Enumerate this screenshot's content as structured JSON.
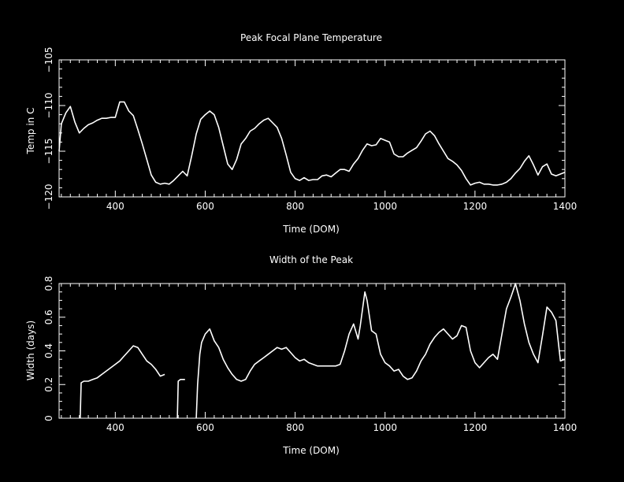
{
  "chart_data": [
    {
      "type": "line",
      "title": "Peak Focal Plane Temperature",
      "xlabel": "Time (DOM)",
      "ylabel": "Temp in C",
      "xlim": [
        275,
        1400
      ],
      "ylim": [
        -120,
        -105
      ],
      "y_reversed": true,
      "xticks": [
        400,
        600,
        800,
        1000,
        1200,
        1400
      ],
      "xtick_labels": [
        "400",
        "600",
        "800",
        "1000",
        "1200",
        "1400"
      ],
      "yticks": [
        -105,
        -110,
        -115,
        -120
      ],
      "ytick_labels": [
        "−105",
        "−110",
        "−115",
        "−120"
      ],
      "grid": false,
      "series": [
        {
          "color": "#ffffff",
          "x": [
            275,
            280,
            290,
            300,
            310,
            320,
            330,
            340,
            350,
            360,
            370,
            380,
            390,
            400,
            410,
            420,
            430,
            440,
            450,
            460,
            470,
            480,
            490,
            500,
            510,
            520,
            530,
            540,
            550,
            560,
            570,
            580,
            590,
            600,
            610,
            620,
            630,
            640,
            650,
            660,
            670,
            680,
            690,
            700,
            710,
            720,
            730,
            740,
            750,
            760,
            770,
            780,
            790,
            800,
            810,
            820,
            830,
            840,
            850,
            860,
            870,
            880,
            890,
            900,
            910,
            920,
            930,
            940,
            950,
            960,
            970,
            980,
            990,
            1000,
            1010,
            1020,
            1030,
            1040,
            1050,
            1060,
            1070,
            1080,
            1090,
            1100,
            1110,
            1120,
            1130,
            1140,
            1150,
            1160,
            1170,
            1180,
            1190,
            1200,
            1210,
            1220,
            1230,
            1240,
            1250,
            1260,
            1270,
            1280,
            1290,
            1300,
            1310,
            1320,
            1330,
            1340,
            1350,
            1360,
            1370,
            1380,
            1390,
            1400
          ],
          "y": [
            -115.0,
            -112.0,
            -110.8,
            -110.1,
            -111.8,
            -113.0,
            -112.5,
            -112.1,
            -111.9,
            -111.6,
            -111.4,
            -111.4,
            -111.3,
            -111.3,
            -109.6,
            -109.6,
            -110.6,
            -111.1,
            -112.6,
            -114.2,
            -115.9,
            -117.6,
            -118.4,
            -118.6,
            -118.5,
            -118.6,
            -118.2,
            -117.7,
            -117.2,
            -117.7,
            -115.5,
            -113.1,
            -111.5,
            -111.0,
            -110.6,
            -111.0,
            -112.4,
            -114.4,
            -116.4,
            -117.0,
            -115.9,
            -114.2,
            -113.6,
            -112.8,
            -112.5,
            -112.0,
            -111.6,
            -111.4,
            -111.9,
            -112.4,
            -113.6,
            -115.4,
            -117.3,
            -118.0,
            -118.2,
            -117.9,
            -118.2,
            -118.1,
            -118.1,
            -117.7,
            -117.6,
            -117.8,
            -117.4,
            -117.0,
            -117.0,
            -117.2,
            -116.4,
            -115.8,
            -114.9,
            -114.2,
            -114.4,
            -114.3,
            -113.6,
            -113.8,
            -114.0,
            -115.3,
            -115.6,
            -115.6,
            -115.2,
            -114.9,
            -114.6,
            -113.9,
            -113.1,
            -112.8,
            -113.3,
            -114.2,
            -115.0,
            -115.8,
            -116.1,
            -116.5,
            -117.1,
            -118.0,
            -118.7,
            -118.5,
            -118.4,
            -118.6,
            -118.6,
            -118.7,
            -118.7,
            -118.6,
            -118.4,
            -118.0,
            -117.4,
            -116.9,
            -116.1,
            -115.5,
            -116.5,
            -117.6,
            -116.7,
            -116.4,
            -117.5,
            -117.7,
            -117.5,
            -117.3
          ]
        }
      ]
    },
    {
      "type": "line",
      "title": "Width of the Peak",
      "xlabel": "Time (DOM)",
      "ylabel": "Width (days)",
      "xlim": [
        275,
        1400
      ],
      "ylim": [
        0,
        0.8
      ],
      "xticks": [
        400,
        600,
        800,
        1000,
        1200,
        1400
      ],
      "xtick_labels": [
        "400",
        "600",
        "800",
        "1000",
        "1200",
        "1400"
      ],
      "yticks": [
        0,
        0.2,
        0.4,
        0.6,
        0.8
      ],
      "ytick_labels": [
        "0",
        "0.2",
        "0.4",
        "0.6",
        "0.8"
      ],
      "grid": false,
      "series": [
        {
          "color": "#ffffff",
          "segments": [
            {
              "x": [
                322,
                324,
                330,
                340,
                350,
                360,
                370,
                380,
                390,
                400,
                410,
                420,
                430,
                440,
                450,
                460,
                470,
                480,
                490,
                500,
                510
              ],
              "y": [
                0.0,
                0.21,
                0.22,
                0.22,
                0.23,
                0.24,
                0.26,
                0.28,
                0.3,
                0.32,
                0.34,
                0.37,
                0.4,
                0.43,
                0.42,
                0.38,
                0.34,
                0.32,
                0.29,
                0.25,
                0.26
              ]
            },
            {
              "x": [
                538,
                540,
                545,
                555
              ],
              "y": [
                0.0,
                0.22,
                0.23,
                0.23
              ]
            },
            {
              "x": [
                580,
                583,
                588,
                592,
                600,
                610,
                620,
                630,
                640,
                650,
                660,
                670,
                680,
                690,
                700,
                710,
                720,
                730,
                740,
                750,
                760,
                770,
                780,
                790,
                800,
                810,
                820,
                830,
                840,
                850,
                860,
                870,
                880,
                890,
                900,
                910,
                920,
                930,
                940,
                945,
                955,
                960,
                970,
                980,
                990,
                1000,
                1010,
                1020,
                1030,
                1040,
                1050,
                1060,
                1070,
                1080,
                1090,
                1100,
                1110,
                1120,
                1130,
                1140,
                1150,
                1160,
                1170,
                1180,
                1190,
                1200,
                1210,
                1220,
                1230,
                1240,
                1250,
                1260,
                1270,
                1280,
                1285,
                1290,
                1300,
                1310,
                1320,
                1330,
                1340,
                1350,
                1360,
                1370,
                1380,
                1390,
                1400
              ],
              "y": [
                0.0,
                0.2,
                0.38,
                0.45,
                0.5,
                0.53,
                0.46,
                0.42,
                0.35,
                0.3,
                0.26,
                0.23,
                0.22,
                0.23,
                0.28,
                0.32,
                0.34,
                0.36,
                0.38,
                0.4,
                0.42,
                0.41,
                0.42,
                0.39,
                0.36,
                0.34,
                0.35,
                0.33,
                0.32,
                0.31,
                0.31,
                0.31,
                0.31,
                0.31,
                0.32,
                0.4,
                0.5,
                0.56,
                0.47,
                0.55,
                0.75,
                0.7,
                0.52,
                0.5,
                0.38,
                0.33,
                0.31,
                0.28,
                0.29,
                0.25,
                0.23,
                0.24,
                0.28,
                0.34,
                0.38,
                0.44,
                0.48,
                0.51,
                0.53,
                0.5,
                0.47,
                0.49,
                0.55,
                0.54,
                0.4,
                0.33,
                0.3,
                0.33,
                0.36,
                0.38,
                0.35,
                0.5,
                0.65,
                0.72,
                0.76,
                0.8,
                0.7,
                0.56,
                0.45,
                0.38,
                0.33,
                0.49,
                0.66,
                0.63,
                0.58,
                0.34,
                0.35
              ]
            }
          ]
        }
      ]
    }
  ]
}
